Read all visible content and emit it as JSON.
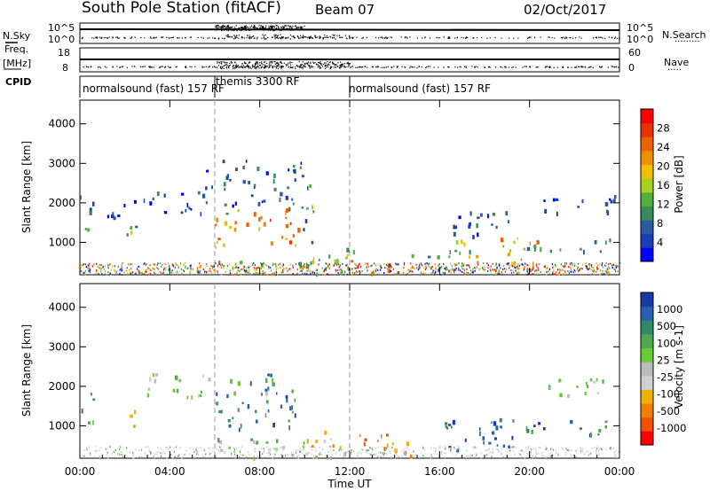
{
  "header": {
    "title": "South Pole Station (fitACF)",
    "beam": "Beam 07",
    "date": "02/Oct/2017"
  },
  "strips": {
    "nsky_label": "N.Sky",
    "freq_label_1": "Freq.",
    "freq_label_2": "[MHz]",
    "cpid_label": "CPID",
    "nsearch_label": "N.Search",
    "nave_label": "Nave",
    "nsky_ticks": [
      "10^5",
      "10^0"
    ],
    "nsearch_ticks": [
      "10^5",
      "10^0"
    ],
    "freq_ticks": [
      "18",
      "8"
    ],
    "nave_ticks": [
      "60",
      "0"
    ],
    "cpid_segments": [
      {
        "start_hour": 0,
        "end_hour": 6,
        "label": "normalsound (fast) 157 RF"
      },
      {
        "start_hour": 6,
        "end_hour": 12,
        "label": "themis 3300 RF"
      },
      {
        "start_hour": 12,
        "end_hour": 24,
        "label": "normalsound (fast) 157 RF"
      }
    ]
  },
  "chart_data": [
    {
      "type": "heatmap",
      "name": "power",
      "ylabel": "Slant Range [km]",
      "ylim": [
        180,
        4600
      ],
      "yticks": [
        1000,
        2000,
        3000,
        4000
      ],
      "xlim": [
        0,
        24
      ],
      "colorbar_label": "Power [dB]",
      "colorbar_ticks": [
        "4",
        "8",
        "12",
        "16",
        "20",
        "24",
        "28"
      ],
      "colorbar_colors": [
        "#0000ff",
        "#1a3fb4",
        "#2a5aa0",
        "#3a8a5a",
        "#55b040",
        "#a8d020",
        "#f0c000",
        "#f09000",
        "#f06000",
        "#e83000",
        "#ff0000"
      ],
      "dashed_lines_hours": [
        6,
        12
      ],
      "regions": [
        {
          "t0": 0.0,
          "t1": 0.6,
          "r0": 900,
          "r1": 2300,
          "level": 0.3
        },
        {
          "t0": 1.0,
          "t1": 2.3,
          "r0": 1450,
          "r1": 2050,
          "level": 0.15
        },
        {
          "t0": 1.9,
          "t1": 2.6,
          "r0": 850,
          "r1": 1500,
          "level": 0.4
        },
        {
          "t0": 2.4,
          "t1": 5.7,
          "r0": 1700,
          "r1": 2300,
          "level": 0.12
        },
        {
          "t0": 5.3,
          "t1": 5.9,
          "r0": 2300,
          "r1": 3000,
          "level": 0.1
        },
        {
          "t0": 6.0,
          "t1": 8.1,
          "r0": 900,
          "r1": 1850,
          "level": 0.65
        },
        {
          "t0": 7.8,
          "t1": 9.7,
          "r0": 950,
          "r1": 1900,
          "level": 0.75
        },
        {
          "t0": 6.3,
          "t1": 10.0,
          "r0": 1750,
          "r1": 3100,
          "level": 0.2
        },
        {
          "t0": 9.7,
          "t1": 10.4,
          "r0": 900,
          "r1": 2500,
          "level": 0.3
        },
        {
          "t0": 6.0,
          "t1": 12.0,
          "r0": 200,
          "r1": 600,
          "level": 0.45
        },
        {
          "t0": 10.3,
          "t1": 12.4,
          "r0": 300,
          "r1": 900,
          "level": 0.45
        },
        {
          "t0": 11.9,
          "t1": 14.6,
          "r0": 250,
          "r1": 650,
          "level": 0.85
        },
        {
          "t0": 14.6,
          "t1": 16.0,
          "r0": 300,
          "r1": 850,
          "level": 0.35
        },
        {
          "t0": 16.2,
          "t1": 17.5,
          "r0": 300,
          "r1": 1250,
          "level": 0.45
        },
        {
          "t0": 17.5,
          "t1": 20.4,
          "r0": 300,
          "r1": 1150,
          "level": 0.65
        },
        {
          "t0": 19.8,
          "t1": 23.9,
          "r0": 800,
          "r1": 1150,
          "level": 0.25
        },
        {
          "t0": 20.5,
          "t1": 23.9,
          "r0": 1750,
          "r1": 2250,
          "level": 0.1
        },
        {
          "t0": 16.5,
          "t1": 19.5,
          "r0": 1100,
          "r1": 1800,
          "level": 0.2
        }
      ]
    },
    {
      "type": "heatmap",
      "name": "velocity",
      "ylabel": "Slant Range [km]",
      "xlabel": "Time UT",
      "ylim": [
        180,
        4600
      ],
      "yticks": [
        1000,
        2000,
        3000,
        4000
      ],
      "xlim": [
        0,
        24
      ],
      "xticks": [
        "00:00",
        "04:00",
        "08:00",
        "12:00",
        "16:00",
        "20:00",
        "00:00"
      ],
      "xtick_hours": [
        0,
        4,
        8,
        12,
        16,
        20,
        24
      ],
      "colorbar_label": "Velocity [m s-1]",
      "colorbar_ticks": [
        "1000",
        "500",
        "100",
        "25",
        "-25",
        "-100",
        "-500",
        "-1000"
      ],
      "colorbar_colors": [
        "#1a3aa8",
        "#2a5fb0",
        "#2f8a6a",
        "#50a850",
        "#66cc33",
        "#bbbbbb",
        "#cfcfcf",
        "#f0b000",
        "#f08000",
        "#f05000",
        "#ff0000"
      ],
      "dashed_lines_hours": [
        6,
        12
      ],
      "regions": [
        {
          "t0": 0.0,
          "t1": 0.6,
          "r0": 900,
          "r1": 1900,
          "level": 0.75
        },
        {
          "t0": 1.9,
          "t1": 2.6,
          "r0": 900,
          "r1": 1450,
          "level": 0.4
        },
        {
          "t0": 2.4,
          "t1": 5.7,
          "r0": 1750,
          "r1": 2350,
          "level": 0.55
        },
        {
          "t0": 6.0,
          "t1": 8.1,
          "r0": 950,
          "r1": 1850,
          "level": 0.85
        },
        {
          "t0": 7.8,
          "t1": 9.7,
          "r0": 1000,
          "r1": 1900,
          "level": 0.8
        },
        {
          "t0": 6.5,
          "t1": 9.5,
          "r0": 1800,
          "r1": 2400,
          "level": 0.7
        },
        {
          "t0": 6.0,
          "t1": 10.5,
          "r0": 200,
          "r1": 700,
          "level": 0.55
        },
        {
          "t0": 10.0,
          "t1": 12.0,
          "r0": 200,
          "r1": 1000,
          "level": 0.35
        },
        {
          "t0": 12.0,
          "t1": 14.7,
          "r0": 200,
          "r1": 800,
          "level": 0.2
        },
        {
          "t0": 16.2,
          "t1": 17.6,
          "r0": 400,
          "r1": 1150,
          "level": 0.8
        },
        {
          "t0": 17.5,
          "t1": 20.4,
          "r0": 400,
          "r1": 1200,
          "level": 0.85
        },
        {
          "t0": 19.8,
          "t1": 23.9,
          "r0": 800,
          "r1": 1150,
          "level": 0.82
        },
        {
          "t0": 20.5,
          "t1": 23.9,
          "r0": 1750,
          "r1": 2250,
          "level": 0.55
        }
      ]
    }
  ]
}
